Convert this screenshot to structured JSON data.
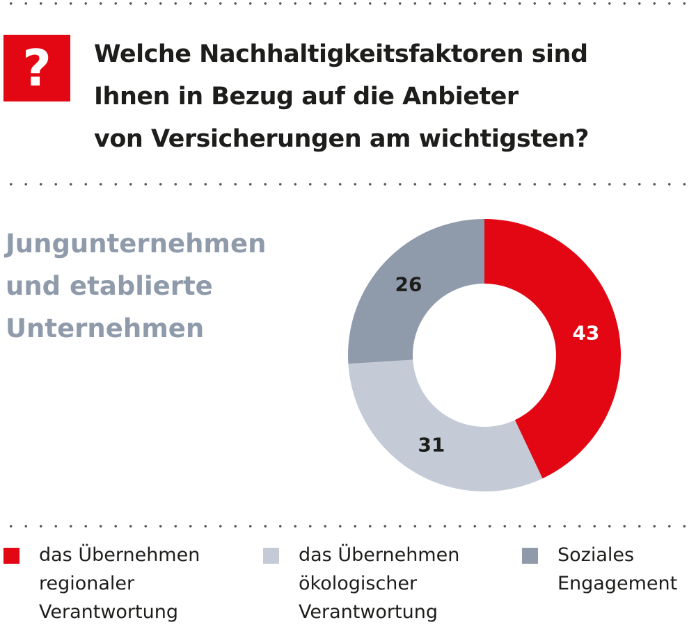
{
  "question_icon": "?",
  "title_lines": [
    "Welche Nachhaltigkeitsfaktoren sind",
    "Ihnen in Bezug auf die Anbieter",
    "von Versicherungen am wichtigsten?"
  ],
  "subtitle_lines": [
    "Jungunternehmen",
    "und etablierte",
    "Unternehmen"
  ],
  "chart_data": {
    "type": "pie",
    "donut": true,
    "title": "Welche Nachhaltigkeitsfaktoren sind Ihnen in Bezug auf die Anbieter von Versicherungen am wichtigsten?",
    "subtitle": "Jungunternehmen und etablierte Unternehmen",
    "categories": [
      "das Übernehmen regionaler Verantwortung",
      "das Übernehmen ökologischer Verantwortung",
      "Soziales Engagement"
    ],
    "values": [
      43,
      31,
      26
    ],
    "colors": [
      "#e30613",
      "#c4cbd6",
      "#8f9bab"
    ],
    "label_colors": [
      "#ffffff",
      "#1d1d1b",
      "#1d1d1b"
    ],
    "legend_position": "bottom"
  },
  "legend": [
    {
      "lines": [
        "das Übernehmen",
        "regionaler",
        "Verantwortung"
      ]
    },
    {
      "lines": [
        "das Übernehmen",
        "ökologischer",
        "Verantwortung"
      ]
    },
    {
      "lines": [
        "Soziales",
        "Engagement"
      ]
    }
  ]
}
